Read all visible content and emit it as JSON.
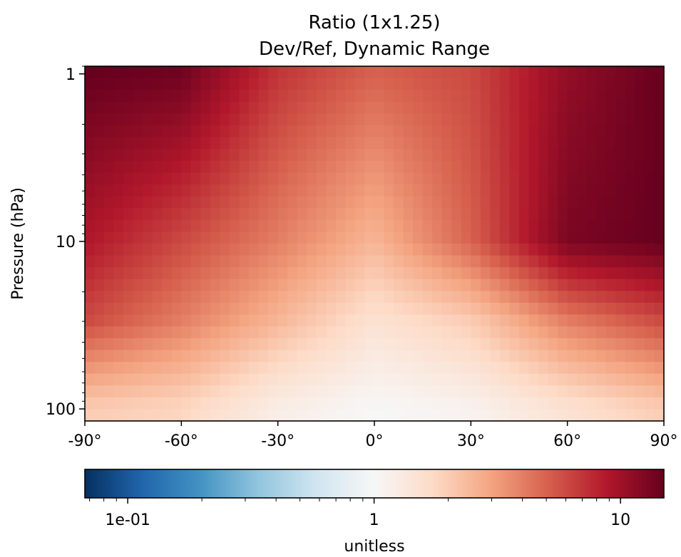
{
  "chart_data": {
    "type": "heatmap",
    "title_line1": "Ratio (1x1.25)",
    "title_line2": "Dev/Ref, Dynamic Range",
    "xlabel": "",
    "ylabel": "Pressure (hPa)",
    "x_range": [
      -90,
      90
    ],
    "x_ticks": [
      -90,
      -60,
      -30,
      0,
      30,
      60,
      90
    ],
    "x_tick_labels": [
      "-90°",
      "-60°",
      "-30°",
      "0°",
      "30°",
      "60°",
      "90°"
    ],
    "y_scale": "log",
    "y_range_hPa": [
      118,
      0.9
    ],
    "y_ticks": [
      1,
      10,
      100
    ],
    "y_tick_labels": [
      "1",
      "10",
      "100"
    ],
    "colormap": "RdBu_r",
    "colorbar": {
      "label": "unitless",
      "scale": "log",
      "range": [
        0.067,
        15
      ],
      "tick_labels": [
        "1e-01",
        "1",
        "10"
      ],
      "tick_values": [
        0.1,
        1,
        10
      ]
    },
    "grid": false,
    "approx_values": [
      {
        "pressure_hPa": 1,
        "lat_-90": 15,
        "lat_-60": 14,
        "lat_-30": 7,
        "lat_0": 5,
        "lat_30": 6,
        "lat_60": 11,
        "lat_90": 15
      },
      {
        "pressure_hPa": 10,
        "lat_-90": 9,
        "lat_-60": 6,
        "lat_-30": 4,
        "lat_0": 2.5,
        "lat_30": 5,
        "lat_60": 13,
        "lat_90": 15
      },
      {
        "pressure_hPa": 30,
        "lat_-90": 6,
        "lat_-60": 4,
        "lat_-30": 2.5,
        "lat_0": 1.5,
        "lat_30": 2,
        "lat_60": 4,
        "lat_90": 6
      },
      {
        "pressure_hPa": 100,
        "lat_-90": 2,
        "lat_-60": 1.8,
        "lat_-30": 1.2,
        "lat_0": 1.0,
        "lat_30": 1.1,
        "lat_60": 1.5,
        "lat_90": 2
      }
    ]
  }
}
